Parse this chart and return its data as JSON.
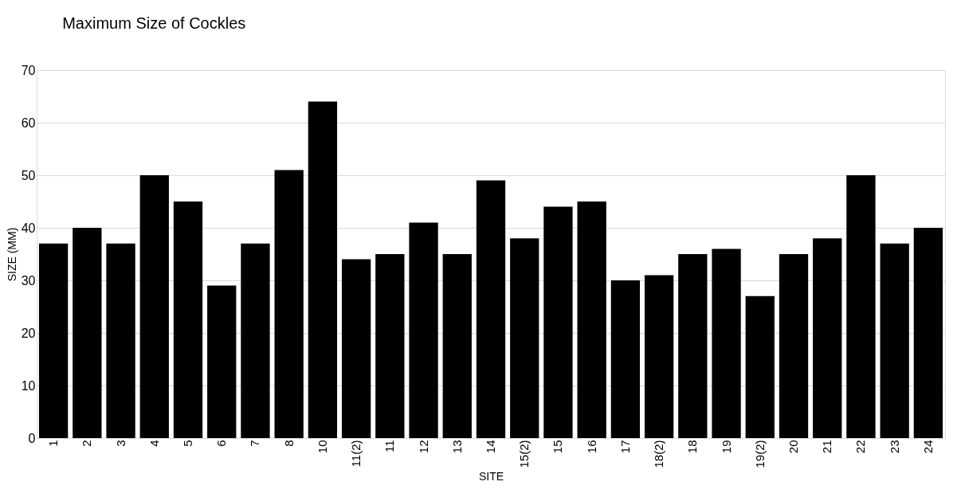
{
  "chart_data": {
    "type": "bar",
    "title": "Maximum Size of Cockles",
    "xlabel": "SITE",
    "ylabel": "SIZE (MM)",
    "categories": [
      "1",
      "2",
      "3",
      "4",
      "5",
      "6",
      "7",
      "8",
      "10",
      "11(2)",
      "11",
      "12",
      "13",
      "14",
      "15(2)",
      "15",
      "16",
      "17",
      "18(2)",
      "18",
      "19",
      "19(2)",
      "20",
      "21",
      "22",
      "23",
      "24"
    ],
    "values": [
      37,
      40,
      37,
      50,
      45,
      29,
      37,
      51,
      64,
      34,
      35,
      41,
      35,
      49,
      38,
      44,
      45,
      30,
      31,
      35,
      36,
      27,
      35,
      38,
      50,
      37,
      40
    ],
    "color": "#000000",
    "ylim": [
      0,
      70
    ],
    "yticks": [
      0,
      10,
      20,
      30,
      40,
      50,
      60,
      70
    ],
    "grid": "y"
  }
}
